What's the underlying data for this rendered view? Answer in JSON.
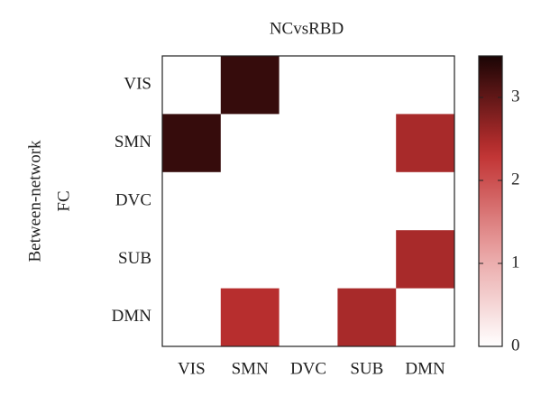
{
  "chart_data": {
    "type": "heatmap",
    "title": "NCvsRBD",
    "ylabel": [
      "Between-network",
      "FC"
    ],
    "x_categories": [
      "VIS",
      "SMN",
      "DVC",
      "SUB",
      "DMN"
    ],
    "y_categories": [
      "VIS",
      "SMN",
      "DVC",
      "SUB",
      "DMN"
    ],
    "z": [
      [
        0,
        3.3,
        0,
        0,
        0
      ],
      [
        3.3,
        0,
        0,
        0,
        2.5
      ],
      [
        0,
        0,
        0,
        0,
        0
      ],
      [
        0,
        0,
        0,
        0,
        2.5
      ],
      [
        0,
        2.4,
        0,
        2.5,
        0
      ]
    ],
    "colormap": [
      "#ffffff",
      "#e8a0a0",
      "#c03030",
      "#1a0505"
    ],
    "clim": [
      0,
      3.5
    ],
    "cticks": [
      0,
      1,
      2,
      3
    ]
  }
}
